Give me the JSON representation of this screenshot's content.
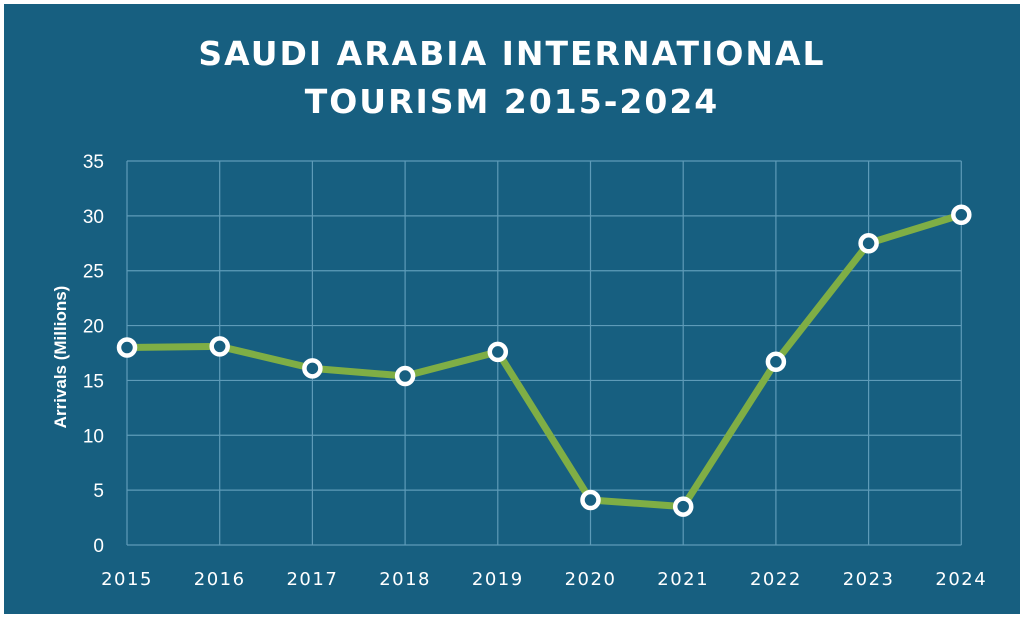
{
  "chart_data": {
    "type": "line",
    "title_line1": "SAUDI ARABIA INTERNATIONAL",
    "title_line2": "TOURISM 2015-2024",
    "xlabel": "",
    "ylabel": "Arrivals (Millions)",
    "categories": [
      "2015",
      "2016",
      "2017",
      "2018",
      "2019",
      "2020",
      "2021",
      "2022",
      "2023",
      "2024"
    ],
    "values": [
      18.0,
      18.1,
      16.1,
      15.4,
      17.6,
      4.1,
      3.5,
      16.7,
      27.5,
      30.1
    ],
    "ylim": [
      0,
      35
    ],
    "yticks": [
      0,
      5,
      10,
      15,
      20,
      25,
      30,
      35
    ],
    "grid": true,
    "colors": {
      "background": "#175f80",
      "line": "#7fae45",
      "marker": "#ffffff",
      "grid": "#5e9bb8"
    }
  }
}
